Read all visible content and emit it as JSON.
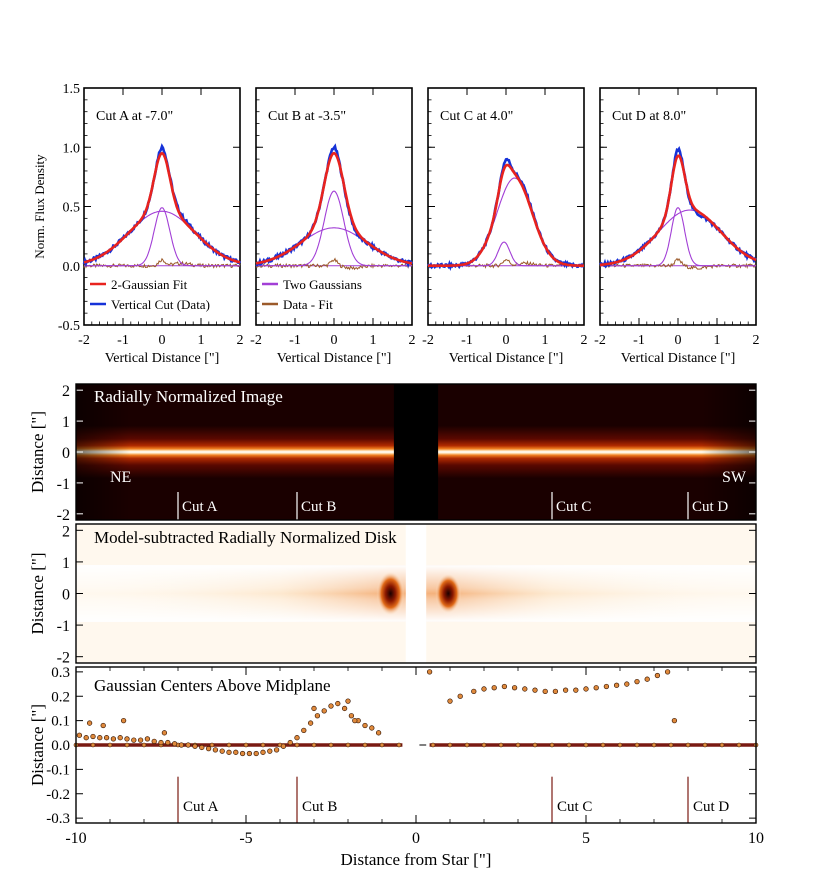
{
  "colors": {
    "fit": "#e8231e",
    "data": "#1632d8",
    "gaussians": "#a23fd6",
    "residual": "#9b5a2a",
    "marker_fill": "#e08a3c",
    "marker_edge": "#3a1a08",
    "cut_line_light": "#ffffff",
    "cut_line_dark": "#7a1a12"
  },
  "chart_data": [
    {
      "type": "line",
      "label": "Cut A at -7.0\"",
      "xlabel": "Vertical Distance [\"]",
      "ylabel": "Norm. Flux Density",
      "xlim": [
        -2,
        2
      ],
      "ylim": [
        -0.5,
        1.5
      ],
      "xticks": [
        "-2",
        "-1",
        "0",
        "1",
        "2"
      ],
      "yticks": [
        "-0.5",
        "0.0",
        "0.5",
        "1.0",
        "1.5"
      ],
      "gaussian_components": [
        {
          "amp": 0.49,
          "center": 0.0,
          "sigma": 0.2
        },
        {
          "amp": 0.46,
          "center": 0.0,
          "sigma": 0.85
        }
      ],
      "legend": [
        "2-Gaussian Fit",
        "Vertical Cut (Data)"
      ],
      "legend_placement": "bottom-left"
    },
    {
      "type": "line",
      "label": "Cut B at -3.5\"",
      "xlabel": "Vertical Distance [\"]",
      "xlim": [
        -2,
        2
      ],
      "ylim": [
        -0.5,
        1.5
      ],
      "xticks": [
        "-2",
        "-1",
        "0",
        "1",
        "2"
      ],
      "gaussian_components": [
        {
          "amp": 0.63,
          "center": 0.0,
          "sigma": 0.25
        },
        {
          "amp": 0.32,
          "center": 0.0,
          "sigma": 0.85
        }
      ],
      "legend": [
        "Two Gaussians",
        "Data - Fit"
      ],
      "legend_placement": "bottom-left"
    },
    {
      "type": "line",
      "label": "Cut C at  4.0\"",
      "xlabel": "Vertical Distance [\"]",
      "xlim": [
        -2,
        2
      ],
      "ylim": [
        -0.5,
        1.5
      ],
      "xticks": [
        "-2",
        "-1",
        "0",
        "1",
        "2"
      ],
      "gaussian_components": [
        {
          "amp": 0.2,
          "center": -0.05,
          "sigma": 0.15
        },
        {
          "amp": 0.74,
          "center": 0.22,
          "sigma": 0.45
        }
      ]
    },
    {
      "type": "line",
      "label": "Cut D at  8.0\"",
      "xlabel": "Vertical Distance [\"]",
      "xlim": [
        -2,
        2
      ],
      "ylim": [
        -0.5,
        1.5
      ],
      "xticks": [
        "-2",
        "-1",
        "0",
        "1",
        "2"
      ],
      "gaussian_components": [
        {
          "amp": 0.49,
          "center": 0.0,
          "sigma": 0.17
        },
        {
          "amp": 0.47,
          "center": 0.3,
          "sigma": 0.8
        }
      ]
    },
    {
      "type": "heatmap",
      "label": "Radially Normalized Image",
      "ylabel": "Distance [\"]",
      "xlim": [
        -10,
        10
      ],
      "ylim": [
        -2.2,
        2.2
      ],
      "yticks": [
        "-2",
        "-1",
        "0",
        "1",
        "2"
      ],
      "annotations": [
        "NE",
        "SW"
      ],
      "cuts": [
        {
          "label": "Cut A",
          "x": -7.0
        },
        {
          "label": "Cut B",
          "x": -3.5
        },
        {
          "label": "Cut C",
          "x": 4.0
        },
        {
          "label": "Cut D",
          "x": 8.0
        }
      ]
    },
    {
      "type": "heatmap",
      "label": "Model-subtracted Radially Normalized Disk",
      "ylabel": "Distance [\"]",
      "xlim": [
        -10,
        10
      ],
      "ylim": [
        -2.2,
        2.2
      ],
      "yticks": [
        "-2",
        "-1",
        "0",
        "1",
        "2"
      ]
    },
    {
      "type": "scatter",
      "label": "Gaussian Centers Above Midplane",
      "xlabel": "Distance from Star [\"]",
      "ylabel": "Distance [\"]",
      "xlim": [
        -10,
        10
      ],
      "ylim": [
        -0.32,
        0.32
      ],
      "xticks": [
        "-10",
        "-5",
        "0",
        "5",
        "10"
      ],
      "yticks": [
        "-0.3",
        "-0.2",
        "-0.1",
        "0.0",
        "0.1",
        "0.2",
        "0.3"
      ],
      "cuts": [
        {
          "label": "Cut A",
          "x": -7.0
        },
        {
          "label": "Cut B",
          "x": -3.5
        },
        {
          "label": "Cut C",
          "x": 4.0
        },
        {
          "label": "Cut D",
          "x": 8.0
        }
      ],
      "series": [
        {
          "x": [
            -9.9,
            -9.7,
            -9.5,
            -9.3,
            -9.1,
            -8.9,
            -8.7,
            -8.5,
            -8.3,
            -8.1,
            -7.9,
            -7.7,
            -7.5,
            -7.3,
            -7.1,
            -6.9,
            -6.7,
            -6.5,
            -6.3,
            -6.1,
            -5.9,
            -5.7,
            -5.5,
            -5.3,
            -5.1,
            -4.9,
            -4.7,
            -4.5,
            -4.3,
            -4.1,
            -3.9,
            -3.7,
            -3.5,
            -3.3,
            -3.1,
            -2.9,
            -2.7,
            -2.5,
            -2.3,
            -2.1,
            -1.9,
            -1.7,
            -1.5,
            -1.3,
            -1.1
          ],
          "y": [
            0.04,
            0.03,
            0.035,
            0.03,
            0.03,
            0.025,
            0.03,
            0.025,
            0.02,
            0.02,
            0.025,
            0.015,
            0.01,
            0.01,
            0.005,
            0.0,
            0.0,
            -0.005,
            -0.01,
            -0.015,
            -0.02,
            -0.025,
            -0.03,
            -0.03,
            -0.035,
            -0.035,
            -0.035,
            -0.03,
            -0.025,
            -0.02,
            -0.005,
            0.01,
            0.03,
            0.06,
            0.09,
            0.12,
            0.14,
            0.16,
            0.17,
            0.15,
            0.12,
            0.1,
            0.08,
            0.07,
            0.05
          ]
        },
        {
          "x": [
            -9.6,
            -9.2,
            -8.6,
            -7.4,
            -3.0,
            -2.0,
            -1.8,
            0.4,
            1.0,
            1.3,
            1.7,
            2.0,
            2.3,
            2.6,
            2.9,
            3.2,
            3.5,
            3.8,
            4.1,
            4.4,
            4.7,
            5.0,
            5.3,
            5.6,
            5.9,
            6.2,
            6.5,
            6.8,
            7.1,
            7.4,
            7.6
          ],
          "y": [
            0.09,
            0.08,
            0.1,
            0.05,
            0.15,
            0.18,
            0.1,
            0.3,
            0.18,
            0.2,
            0.22,
            0.23,
            0.235,
            0.24,
            0.235,
            0.23,
            0.225,
            0.22,
            0.22,
            0.225,
            0.225,
            0.23,
            0.235,
            0.24,
            0.245,
            0.25,
            0.26,
            0.27,
            0.285,
            0.3,
            0.1
          ]
        },
        {
          "x": [
            -10,
            -9.5,
            -9.0,
            -8.5,
            -8.0,
            -7.5,
            -7.0,
            -6.5,
            -6.0,
            -5.5,
            -5.0,
            -4.5,
            -4.0,
            -3.5,
            -3.0,
            -2.5,
            -2.0,
            -1.5,
            -1.0,
            -0.5,
            0.5,
            1.0,
            1.5,
            2.0,
            2.5,
            3.0,
            3.5,
            4.0,
            4.5,
            5.0,
            5.5,
            6.0,
            6.5,
            7.0,
            7.5,
            8.0,
            8.5,
            9.0,
            9.5,
            10.0
          ],
          "y": [
            0,
            0,
            0,
            0,
            0,
            0,
            0,
            0,
            0,
            0,
            0,
            0,
            0,
            0,
            0,
            0,
            0,
            0,
            0,
            0,
            0,
            0,
            0,
            0,
            0,
            0,
            0,
            0,
            0,
            0,
            0,
            0,
            0,
            0,
            0,
            0,
            0,
            0,
            0,
            0
          ]
        }
      ]
    }
  ]
}
